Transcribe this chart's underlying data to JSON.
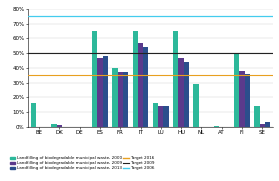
{
  "categories": [
    "BE",
    "DK",
    "DE",
    "ES",
    "FR",
    "IT",
    "LU",
    "HU",
    "NL",
    "AT",
    "FI",
    "SE"
  ],
  "series": {
    "2000": [
      16,
      2,
      0,
      65,
      40,
      65,
      16,
      65,
      29,
      0.5,
      50,
      14
    ],
    "2009": [
      0,
      1,
      0,
      47,
      37,
      57,
      14,
      47,
      0,
      0,
      38,
      2
    ],
    "2013": [
      0,
      0,
      0,
      48,
      37,
      54,
      14,
      44,
      0,
      0,
      36,
      3
    ]
  },
  "colors": {
    "2000": "#2DB89A",
    "2009": "#5B3A8C",
    "2013": "#2B4E8C"
  },
  "targets": {
    "2016": 35,
    "2009_target": 50,
    "2006": 75
  },
  "target_colors": {
    "2016": "#E8A020",
    "2009_target": "#222222",
    "2006": "#44CCEE"
  },
  "ylim": [
    0,
    80
  ],
  "yticks": [
    0,
    10,
    20,
    30,
    40,
    50,
    60,
    70,
    80
  ],
  "legend_labels": {
    "2000": "Landfilling of biodegradable municipal waste, 2000",
    "2009": "Landfilling of biodegradable municipal waste, 2009",
    "2013": "Landfilling of biodegradable municipal waste, 2013",
    "target_2016": "Target 2016",
    "target_2009": "Target 2009",
    "target_2006": "Target 2006"
  },
  "background_color": "#FFFFFF",
  "figsize": [
    2.79,
    1.81
  ],
  "dpi": 100
}
